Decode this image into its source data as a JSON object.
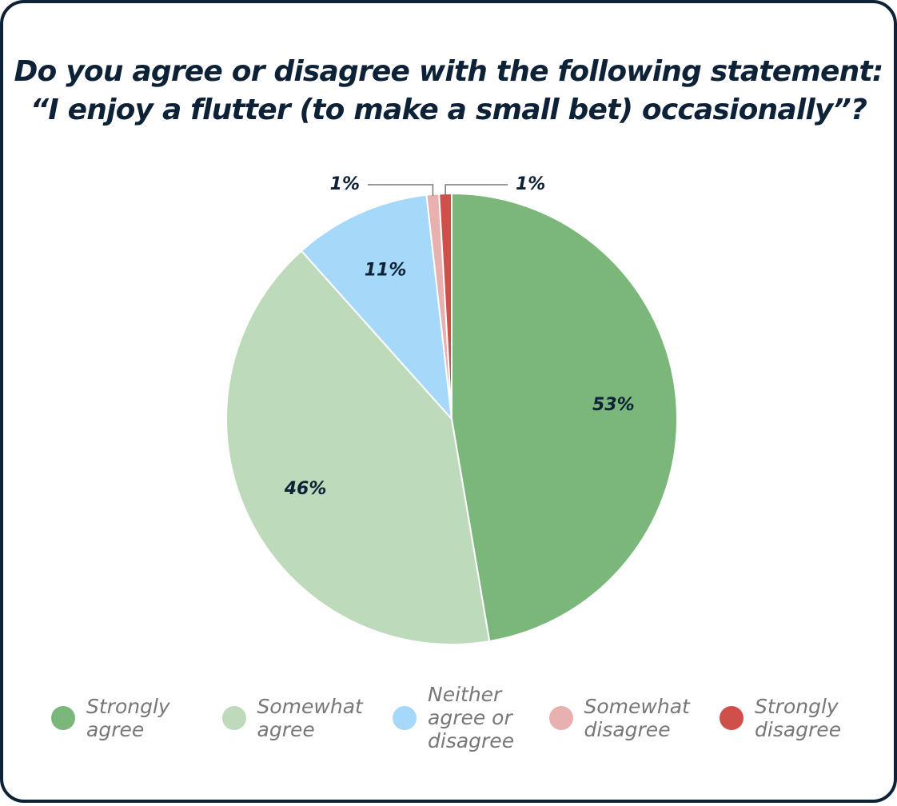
{
  "chart_data": {
    "type": "pie",
    "title": [
      "Do you agree or disagree with the following statement:",
      "“I enjoy a flutter (to make a small bet) occasionally”?"
    ],
    "categories": [
      "Strongly agree",
      "Somewhat agree",
      "Neither agree or disagree",
      "Somewhat disagree",
      "Strongly disagree"
    ],
    "values": [
      53,
      46,
      11,
      1,
      1
    ],
    "value_labels": [
      "53%",
      "46%",
      "11%",
      "1%",
      "1%"
    ],
    "colors": [
      "#7bb67a",
      "#bddbbb",
      "#a6d8f9",
      "#e8b0ae",
      "#cf4f4a"
    ],
    "legend": "bottom"
  }
}
